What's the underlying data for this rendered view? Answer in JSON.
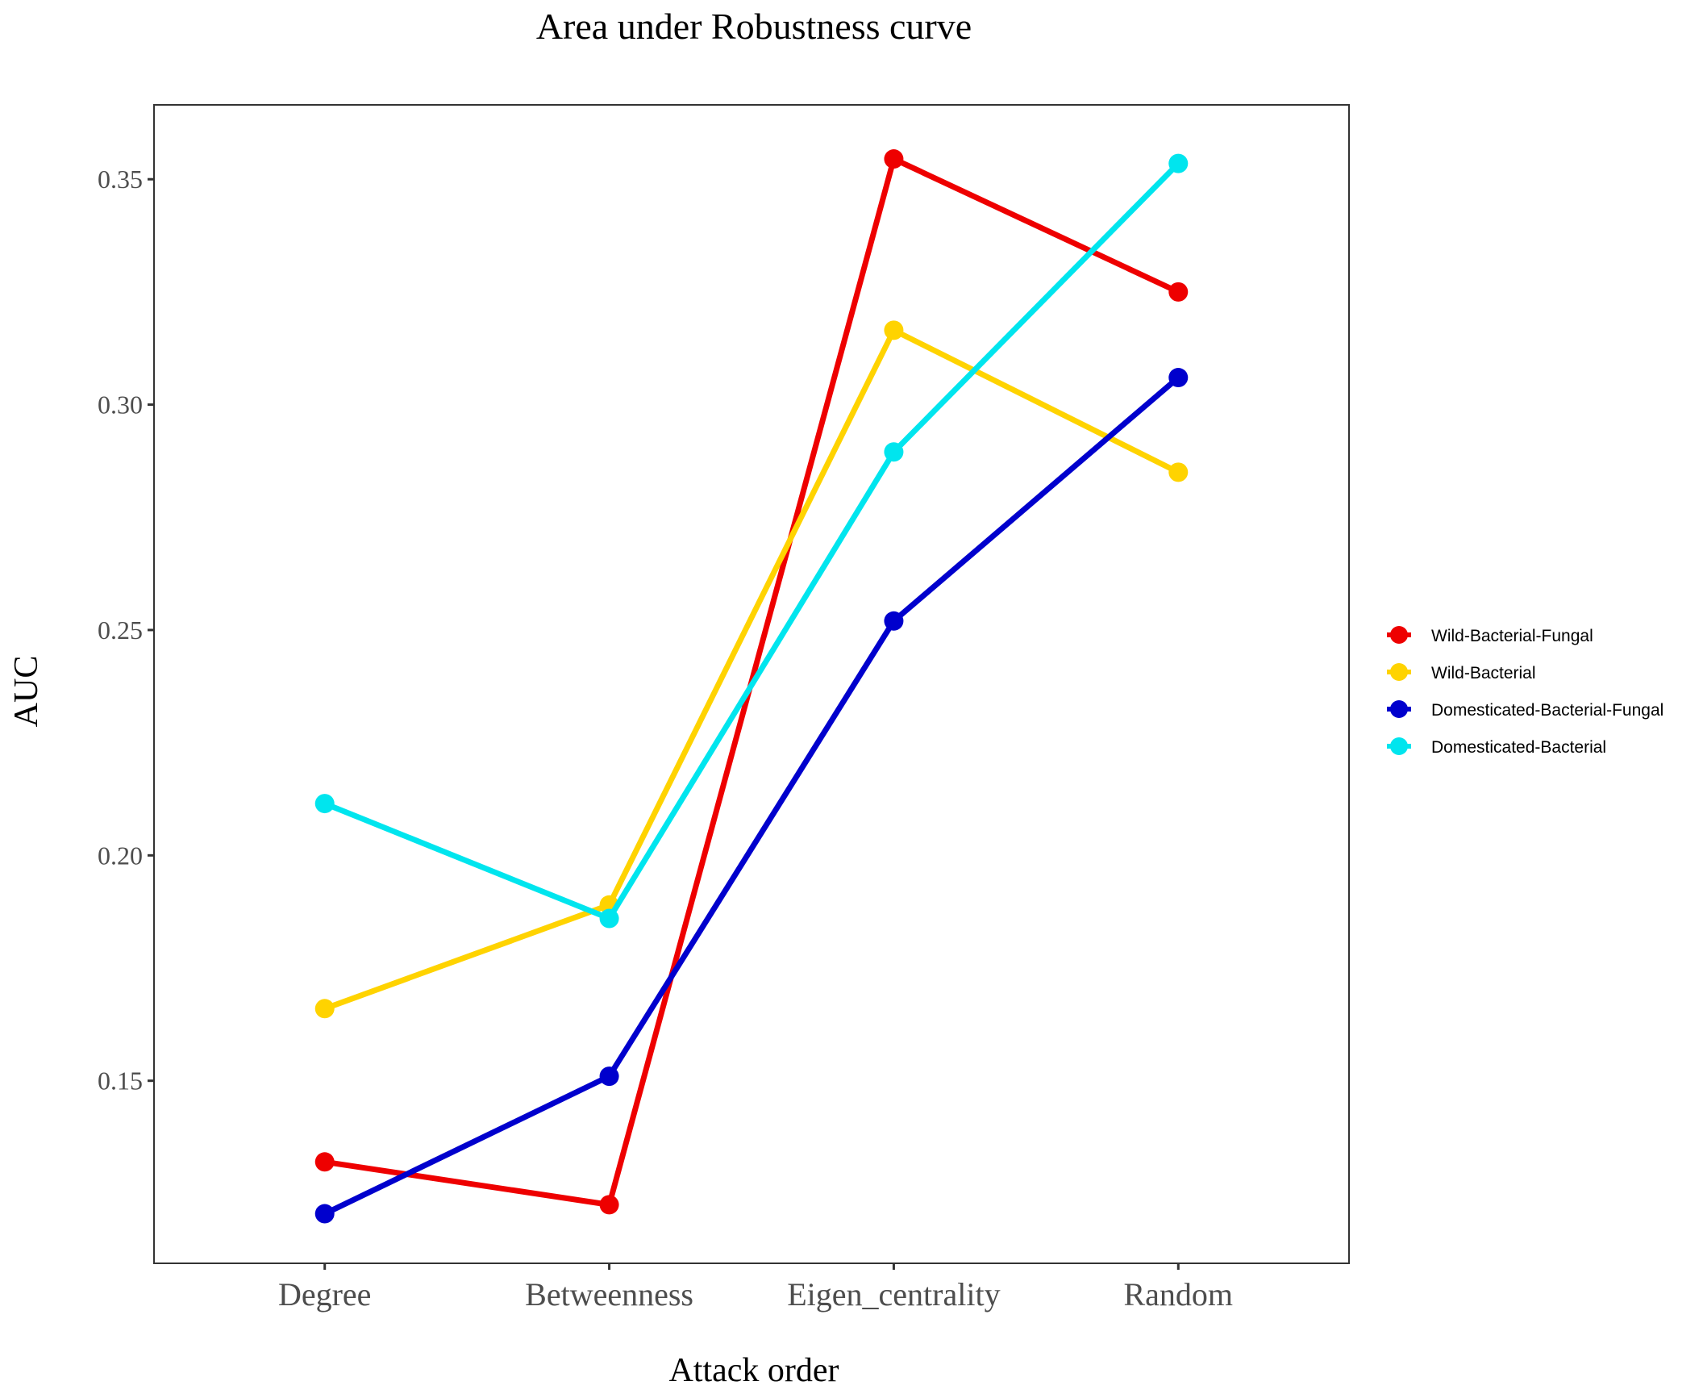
{
  "chart_data": {
    "type": "line",
    "title": "Area under Robustness curve",
    "xlabel": "Attack order",
    "ylabel": "AUC",
    "categories": [
      "Degree",
      "Betweenness",
      "Eigen_centrality",
      "Random"
    ],
    "y_ticks": [
      "0.15",
      "0.20",
      "0.25",
      "0.30",
      "0.35"
    ],
    "ylim": [
      0.1095,
      0.3665
    ],
    "grid": false,
    "legend_position": "right",
    "series": [
      {
        "name": "Wild-Bacterial-Fungal",
        "color": "#ee0000",
        "values": [
          0.132,
          0.1225,
          0.3545,
          0.325
        ]
      },
      {
        "name": "Wild-Bacterial",
        "color": "#ffd300",
        "values": [
          0.166,
          0.189,
          0.3165,
          0.285
        ]
      },
      {
        "name": "Domesticated-Bacterial-Fungal",
        "color": "#0000cd",
        "values": [
          0.1205,
          0.151,
          0.252,
          0.306
        ]
      },
      {
        "name": "Domesticated-Bacterial",
        "color": "#00e5ee",
        "values": [
          0.2115,
          0.186,
          0.2895,
          0.3535
        ]
      }
    ]
  }
}
